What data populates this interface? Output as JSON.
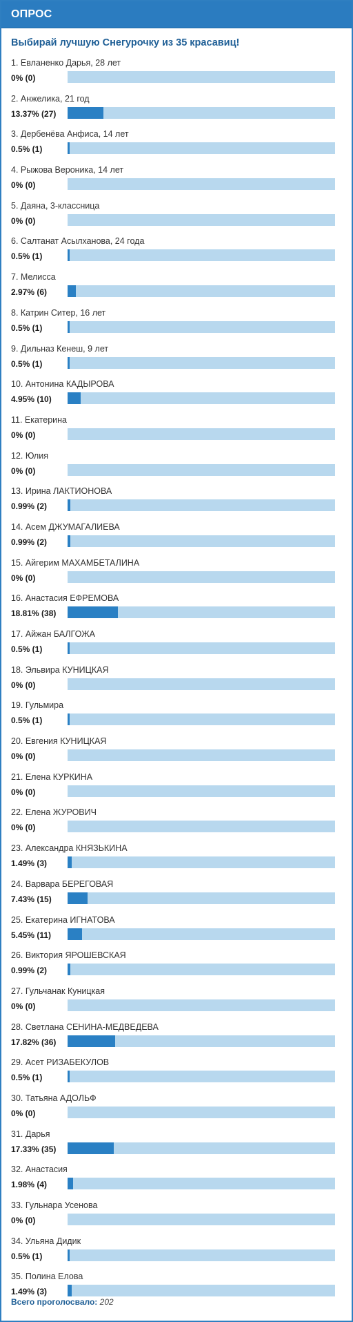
{
  "header": {
    "title": "ОПРОС"
  },
  "poll": {
    "question": "Выбирай лучшую Снегурочку из 35 красавиц!",
    "total_label": "Всего проголосвало:",
    "total_votes": "202",
    "colors": {
      "header_bg": "#2b7cc0",
      "bar_track": "#b8d8ee",
      "bar_fill": "#2a80c4",
      "question_text": "#1f5f96"
    },
    "options": [
      {
        "label": "1. Евланенко Дарья, 28 лет",
        "result": "0% (0)",
        "percent": 0
      },
      {
        "label": "2. Анжелика, 21 год",
        "result": "13.37% (27)",
        "percent": 13.37
      },
      {
        "label": "3. Дербенёва Анфиса, 14 лет",
        "result": "0.5% (1)",
        "percent": 0.5
      },
      {
        "label": "4. Рыжова Вероника, 14 лет",
        "result": "0% (0)",
        "percent": 0
      },
      {
        "label": "5. Даяна, 3-классница",
        "result": "0% (0)",
        "percent": 0
      },
      {
        "label": "6. Салтанат Асылханова, 24 года",
        "result": "0.5% (1)",
        "percent": 0.5
      },
      {
        "label": "7. Мелисса",
        "result": "2.97% (6)",
        "percent": 2.97
      },
      {
        "label": "8. Катрин Ситер, 16 лет",
        "result": "0.5% (1)",
        "percent": 0.5
      },
      {
        "label": "9. Дильназ Кенеш, 9 лет",
        "result": "0.5% (1)",
        "percent": 0.5
      },
      {
        "label": "10. Антонина КАДЫРОВА",
        "result": "4.95% (10)",
        "percent": 4.95
      },
      {
        "label": "11. Екатерина",
        "result": "0% (0)",
        "percent": 0
      },
      {
        "label": "12. Юлия",
        "result": "0% (0)",
        "percent": 0
      },
      {
        "label": "13. Ирина ЛАКТИОНОВА",
        "result": "0.99% (2)",
        "percent": 0.99
      },
      {
        "label": "14. Асем ДЖУМАГАЛИЕВА",
        "result": "0.99% (2)",
        "percent": 0.99
      },
      {
        "label": "15. Айгерим МАХАМБЕТАЛИНА",
        "result": "0% (0)",
        "percent": 0
      },
      {
        "label": "16. Анастасия ЕФРЕМОВА",
        "result": "18.81% (38)",
        "percent": 18.81
      },
      {
        "label": "17. Айжан БАЛГОЖА",
        "result": "0.5% (1)",
        "percent": 0.5
      },
      {
        "label": "18. Эльвира КУНИЦКАЯ",
        "result": "0% (0)",
        "percent": 0
      },
      {
        "label": "19. Гульмира",
        "result": "0.5% (1)",
        "percent": 0.5
      },
      {
        "label": "20. Евгения КУНИЦКАЯ",
        "result": "0% (0)",
        "percent": 0
      },
      {
        "label": "21. Елена КУРКИНА",
        "result": "0% (0)",
        "percent": 0
      },
      {
        "label": "22. Елена ЖУРОВИЧ",
        "result": "0% (0)",
        "percent": 0
      },
      {
        "label": "23. Александра КНЯЗЬКИНА",
        "result": "1.49% (3)",
        "percent": 1.49
      },
      {
        "label": "24. Варвара БЕРЕГОВАЯ",
        "result": "7.43% (15)",
        "percent": 7.43
      },
      {
        "label": "25. Екатерина ИГНАТОВА",
        "result": "5.45% (11)",
        "percent": 5.45
      },
      {
        "label": "26. Виктория ЯРОШЕВСКАЯ",
        "result": "0.99% (2)",
        "percent": 0.99
      },
      {
        "label": "27. Гульчанак Куницкая",
        "result": "0% (0)",
        "percent": 0
      },
      {
        "label": "28. Светлана СЕНИНА-МЕДВЕДЕВА",
        "result": "17.82% (36)",
        "percent": 17.82
      },
      {
        "label": "29. Асет РИЗАБЕКУЛОВ",
        "result": "0.5% (1)",
        "percent": 0.5
      },
      {
        "label": "30. Татьяна АДОЛЬФ",
        "result": "0% (0)",
        "percent": 0
      },
      {
        "label": "31. Дарья",
        "result": "17.33% (35)",
        "percent": 17.33
      },
      {
        "label": "32. Анастасия",
        "result": "1.98% (4)",
        "percent": 1.98
      },
      {
        "label": "33. Гульнара Усенова",
        "result": "0% (0)",
        "percent": 0
      },
      {
        "label": "34. Ульяна Дидик",
        "result": "0.5% (1)",
        "percent": 0.5
      },
      {
        "label": "35. Полина Елова",
        "result": "1.49% (3)",
        "percent": 1.49
      }
    ]
  }
}
